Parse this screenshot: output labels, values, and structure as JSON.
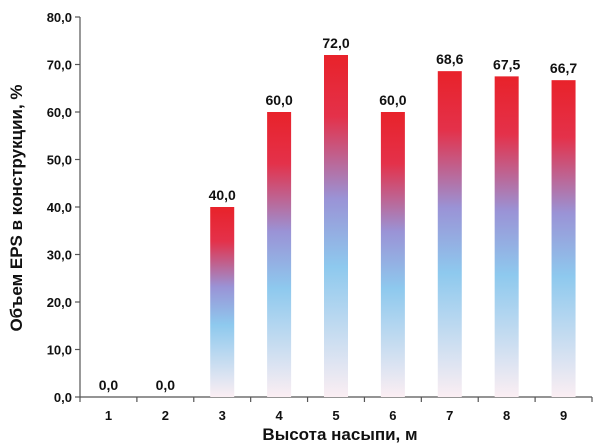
{
  "chart_data": {
    "type": "bar",
    "title": "",
    "xlabel": "Высота насыпи, м",
    "ylabel": "Объем EPS в конструкции, %",
    "categories": [
      "1",
      "2",
      "3",
      "4",
      "5",
      "6",
      "7",
      "8",
      "9"
    ],
    "values": [
      0.0,
      0.0,
      40.0,
      60.0,
      72.0,
      60.0,
      68.6,
      67.5,
      66.7
    ],
    "data_labels": [
      "0,0",
      "0,0",
      "40,0",
      "60,0",
      "72,0",
      "60,0",
      "68,6",
      "67,5",
      "66,7"
    ],
    "ylim": [
      0,
      80
    ],
    "yticks": [
      0,
      10,
      20,
      30,
      40,
      50,
      60,
      70,
      80
    ],
    "ytick_labels": [
      "0,0",
      "10,0",
      "20,0",
      "30,0",
      "40,0",
      "50,0",
      "60,0",
      "70,0",
      "80,0"
    ],
    "grid": false,
    "legend": "none",
    "colors": {
      "bar_top": "#e8222a",
      "bar_mid": "#8ec9ee",
      "bar_bottom": "#fbeef3",
      "axis": "#555555"
    }
  }
}
